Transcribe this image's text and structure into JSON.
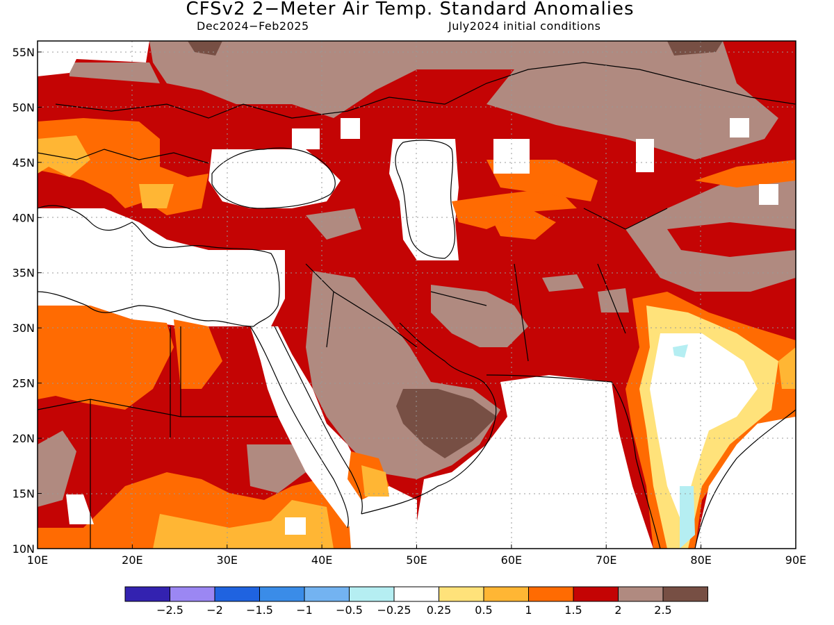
{
  "title": "CFSv2 2−Meter Air Temp. Standard Anomalies",
  "subtitle_left": "Dec2024−Feb2025",
  "subtitle_right": "July2024 initial conditions",
  "colors": {
    "neg_2_5": "#3322b0",
    "neg_2": "#9b87f3",
    "neg_1_5": "#1f63e0",
    "neg_1": "#3a8ce8",
    "neg_0_5": "#73b3f1",
    "neg_0_25": "#b5eef2",
    "neutral": "#ffffff",
    "pos_0_25": "#ffe27a",
    "pos_0_5": "#ffb634",
    "pos_1": "#ff6b02",
    "pos_1_5": "#c40404",
    "pos_2": "#b08a80",
    "pos_2_5": "#774f44"
  },
  "legend": {
    "colors": [
      "#3322b0",
      "#9b87f3",
      "#1f63e0",
      "#3a8ce8",
      "#73b3f1",
      "#b5eef2",
      "#ffffff",
      "#ffe27a",
      "#ffb634",
      "#ff6b02",
      "#c40404",
      "#b08a80",
      "#774f44"
    ],
    "labels": [
      "−2.5",
      "−2",
      "−1.5",
      "−1",
      "−0.5",
      "−0.25",
      "0.25",
      "0.5",
      "1",
      "1.5",
      "2",
      "2.5"
    ]
  },
  "axes": {
    "x_ticks": [
      "10E",
      "20E",
      "30E",
      "40E",
      "50E",
      "60E",
      "70E",
      "80E",
      "90E"
    ],
    "y_ticks": [
      "55N",
      "50N",
      "45N",
      "40N",
      "35N",
      "30N",
      "25N",
      "20N",
      "15N",
      "10N"
    ]
  },
  "map_extent": {
    "lon": [
      10,
      90
    ],
    "lat": [
      10,
      56
    ]
  }
}
